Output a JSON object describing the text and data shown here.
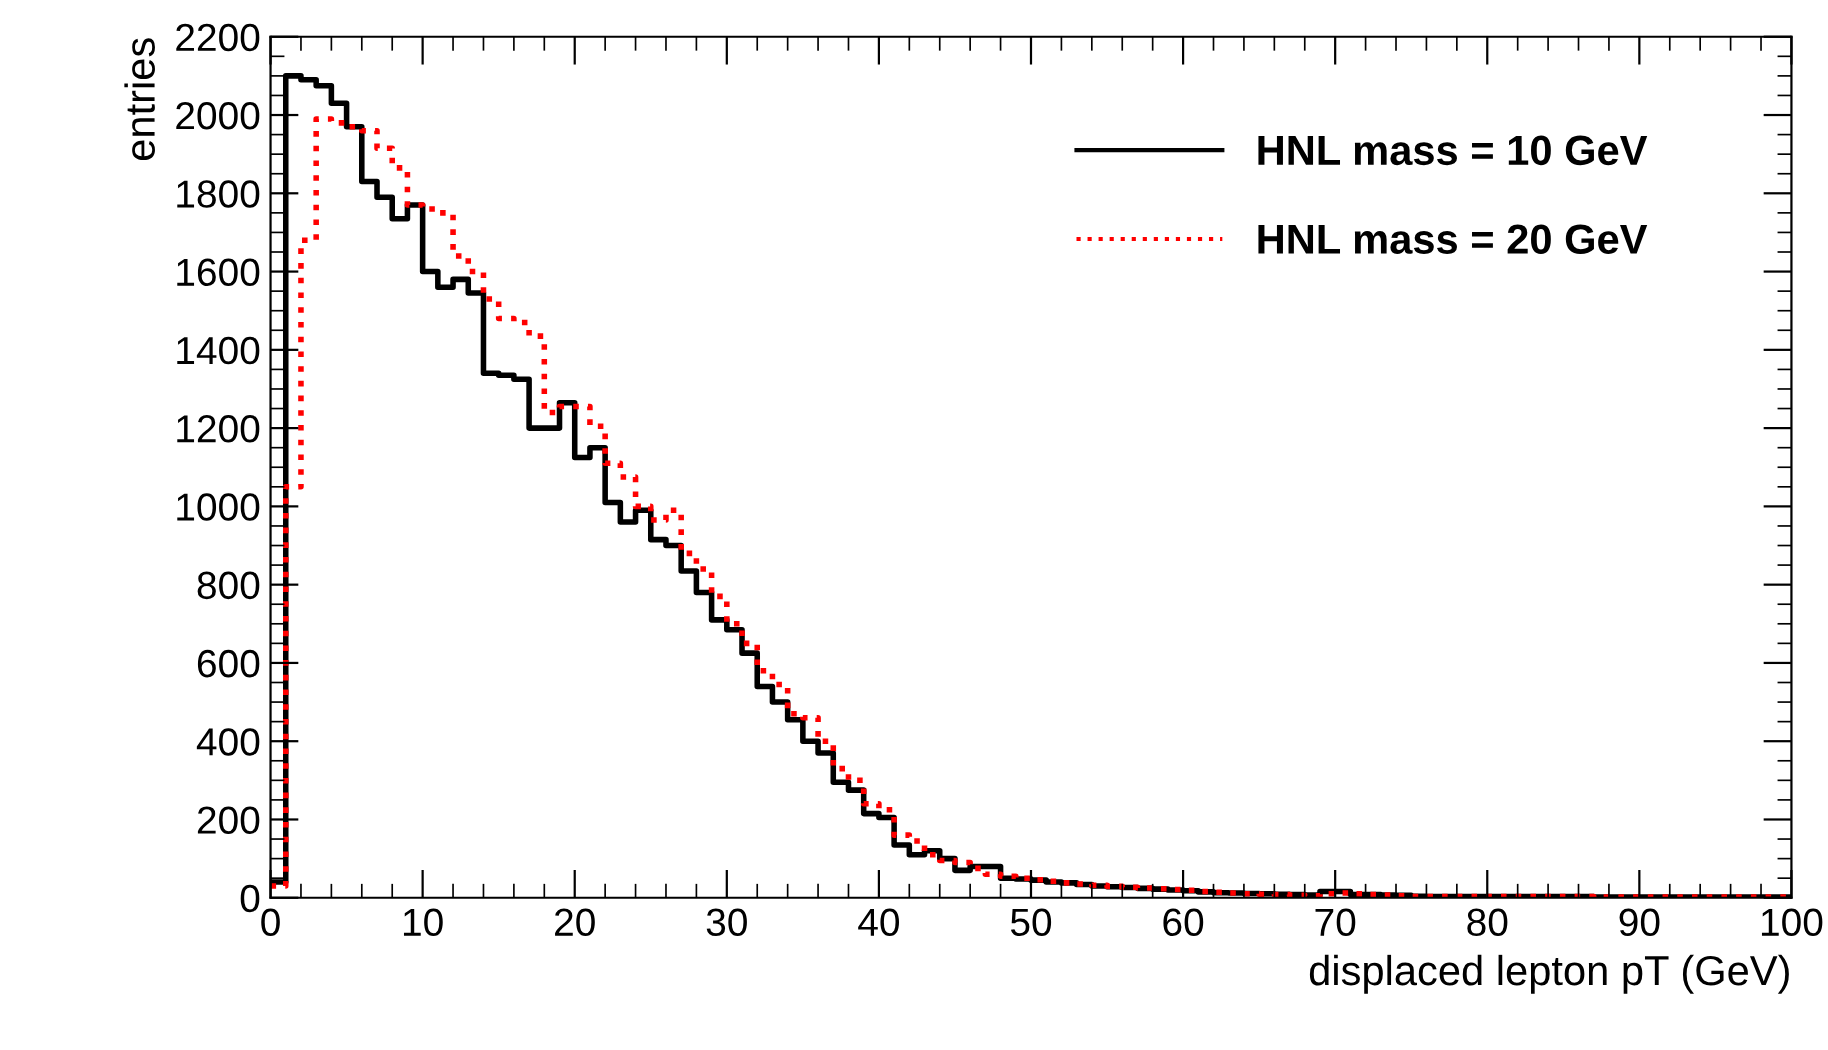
{
  "chart_data": {
    "type": "histogram",
    "xlabel": "displaced lepton pT (GeV)",
    "ylabel": "entries",
    "bins": [
      0,
      1,
      2,
      3,
      4,
      5,
      6,
      7,
      8,
      9,
      10,
      11,
      12,
      13,
      14,
      15,
      16,
      17,
      18,
      19,
      20,
      21,
      22,
      23,
      24,
      25,
      26,
      27,
      28,
      29,
      30,
      31,
      32,
      33,
      34,
      35,
      36,
      37,
      38,
      39,
      40,
      41,
      42,
      43,
      44,
      45,
      46,
      47,
      48,
      49,
      50,
      51,
      52,
      53,
      54,
      55,
      56,
      57,
      58,
      59,
      60,
      61,
      62,
      63,
      64,
      65,
      66,
      67,
      68,
      69,
      70,
      71,
      72,
      73,
      74,
      75,
      76,
      77,
      78,
      79,
      80,
      81,
      82,
      83,
      84,
      85,
      86,
      87,
      88,
      89,
      90,
      91,
      92,
      93,
      94,
      95,
      96,
      97,
      98,
      99,
      100
    ],
    "series": [
      {
        "name": "HNL mass = 10 GeV",
        "color": "#000000",
        "line_style": "solid",
        "values": [
          40,
          2100,
          2090,
          2075,
          2030,
          1970,
          1830,
          1790,
          1735,
          1770,
          1600,
          1560,
          1580,
          1545,
          1340,
          1335,
          1325,
          1200,
          1200,
          1265,
          1125,
          1150,
          1010,
          960,
          990,
          915,
          900,
          835,
          780,
          710,
          685,
          625,
          540,
          500,
          455,
          400,
          370,
          295,
          275,
          215,
          205,
          135,
          110,
          120,
          100,
          70,
          80,
          80,
          50,
          48,
          45,
          40,
          38,
          34,
          30,
          28,
          26,
          24,
          22,
          20,
          18,
          15,
          13,
          12,
          11,
          10,
          9,
          8,
          7,
          16,
          16,
          8,
          8,
          7,
          6,
          4,
          3,
          3,
          3,
          3,
          3,
          3,
          3,
          3,
          3,
          3,
          3,
          2,
          2,
          2,
          2,
          2,
          2,
          2,
          2,
          2,
          2,
          2,
          2,
          2
        ]
      },
      {
        "name": "HNL mass = 20 GeV",
        "color": "#ff0000",
        "line_style": "dotted",
        "values": [
          30,
          1050,
          1680,
          1990,
          1980,
          1970,
          1960,
          1915,
          1865,
          1770,
          1760,
          1750,
          1640,
          1600,
          1530,
          1480,
          1470,
          1435,
          1240,
          1255,
          1255,
          1205,
          1110,
          1075,
          1000,
          965,
          990,
          880,
          840,
          770,
          700,
          650,
          580,
          545,
          470,
          460,
          400,
          330,
          300,
          240,
          225,
          160,
          145,
          110,
          95,
          90,
          75,
          60,
          55,
          50,
          46,
          42,
          38,
          35,
          32,
          29,
          27,
          25,
          23,
          21,
          19,
          16,
          14,
          12,
          10,
          9,
          8,
          6,
          5,
          10,
          12,
          10,
          8,
          7,
          5,
          3,
          3,
          3,
          3,
          3,
          3,
          3,
          3,
          3,
          3,
          3,
          3,
          2,
          2,
          2,
          2,
          2,
          2,
          2,
          2,
          2,
          2,
          2,
          2,
          2
        ]
      }
    ],
    "xlim": [
      0,
      100
    ],
    "xticks": [
      0,
      10,
      20,
      30,
      40,
      50,
      60,
      70,
      80,
      90,
      100
    ],
    "ylim": [
      0,
      2200
    ],
    "yticks": [
      0,
      200,
      400,
      600,
      800,
      1000,
      1200,
      1400,
      1600,
      1800,
      2000,
      2200
    ],
    "legend": "top right",
    "grid": false,
    "marker": "none"
  }
}
